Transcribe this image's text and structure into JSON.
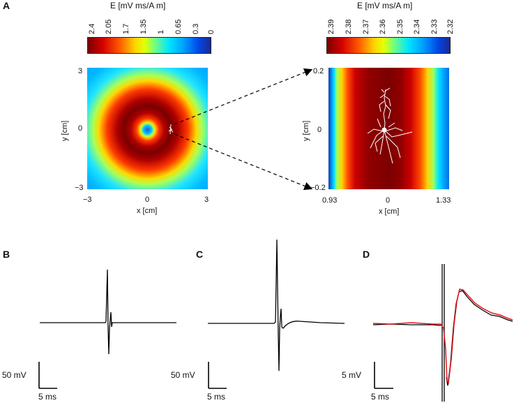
{
  "panels": {
    "a": "A",
    "b": "B",
    "c": "C",
    "d": "D"
  },
  "colorbar_left": {
    "title": "E [mV ms/A m]",
    "ticks": [
      "2.4",
      "2.05",
      "1.7",
      "1.35",
      "1",
      "0.65",
      "0.3",
      "0"
    ]
  },
  "colorbar_right": {
    "title": "E [mV ms/A m]",
    "ticks": [
      "2.39",
      "2.38",
      "2.37",
      "2.36",
      "2.35",
      "2.34",
      "2.33",
      "2.32"
    ]
  },
  "map_left": {
    "xlabel": "x [cm]",
    "ylabel": "y [cm]",
    "xticks": [
      "−3",
      "0",
      "3"
    ],
    "yticks": [
      "3",
      "0",
      "−3"
    ]
  },
  "map_right": {
    "xlabel": "x [cm]",
    "ylabel": "y [cm]",
    "xticks": [
      "0.93",
      "0",
      "1.33"
    ],
    "yticks": [
      "0.2",
      "0",
      "−0.2"
    ]
  },
  "scalebars": {
    "b": {
      "v": "50 mV",
      "t": "5 ms"
    },
    "c": {
      "v": "50 mV",
      "t": "5 ms"
    },
    "d": {
      "v": "5 mV",
      "t": "5 ms"
    }
  },
  "trace_colors": {
    "black": "#000000",
    "red": "#e8141c"
  }
}
